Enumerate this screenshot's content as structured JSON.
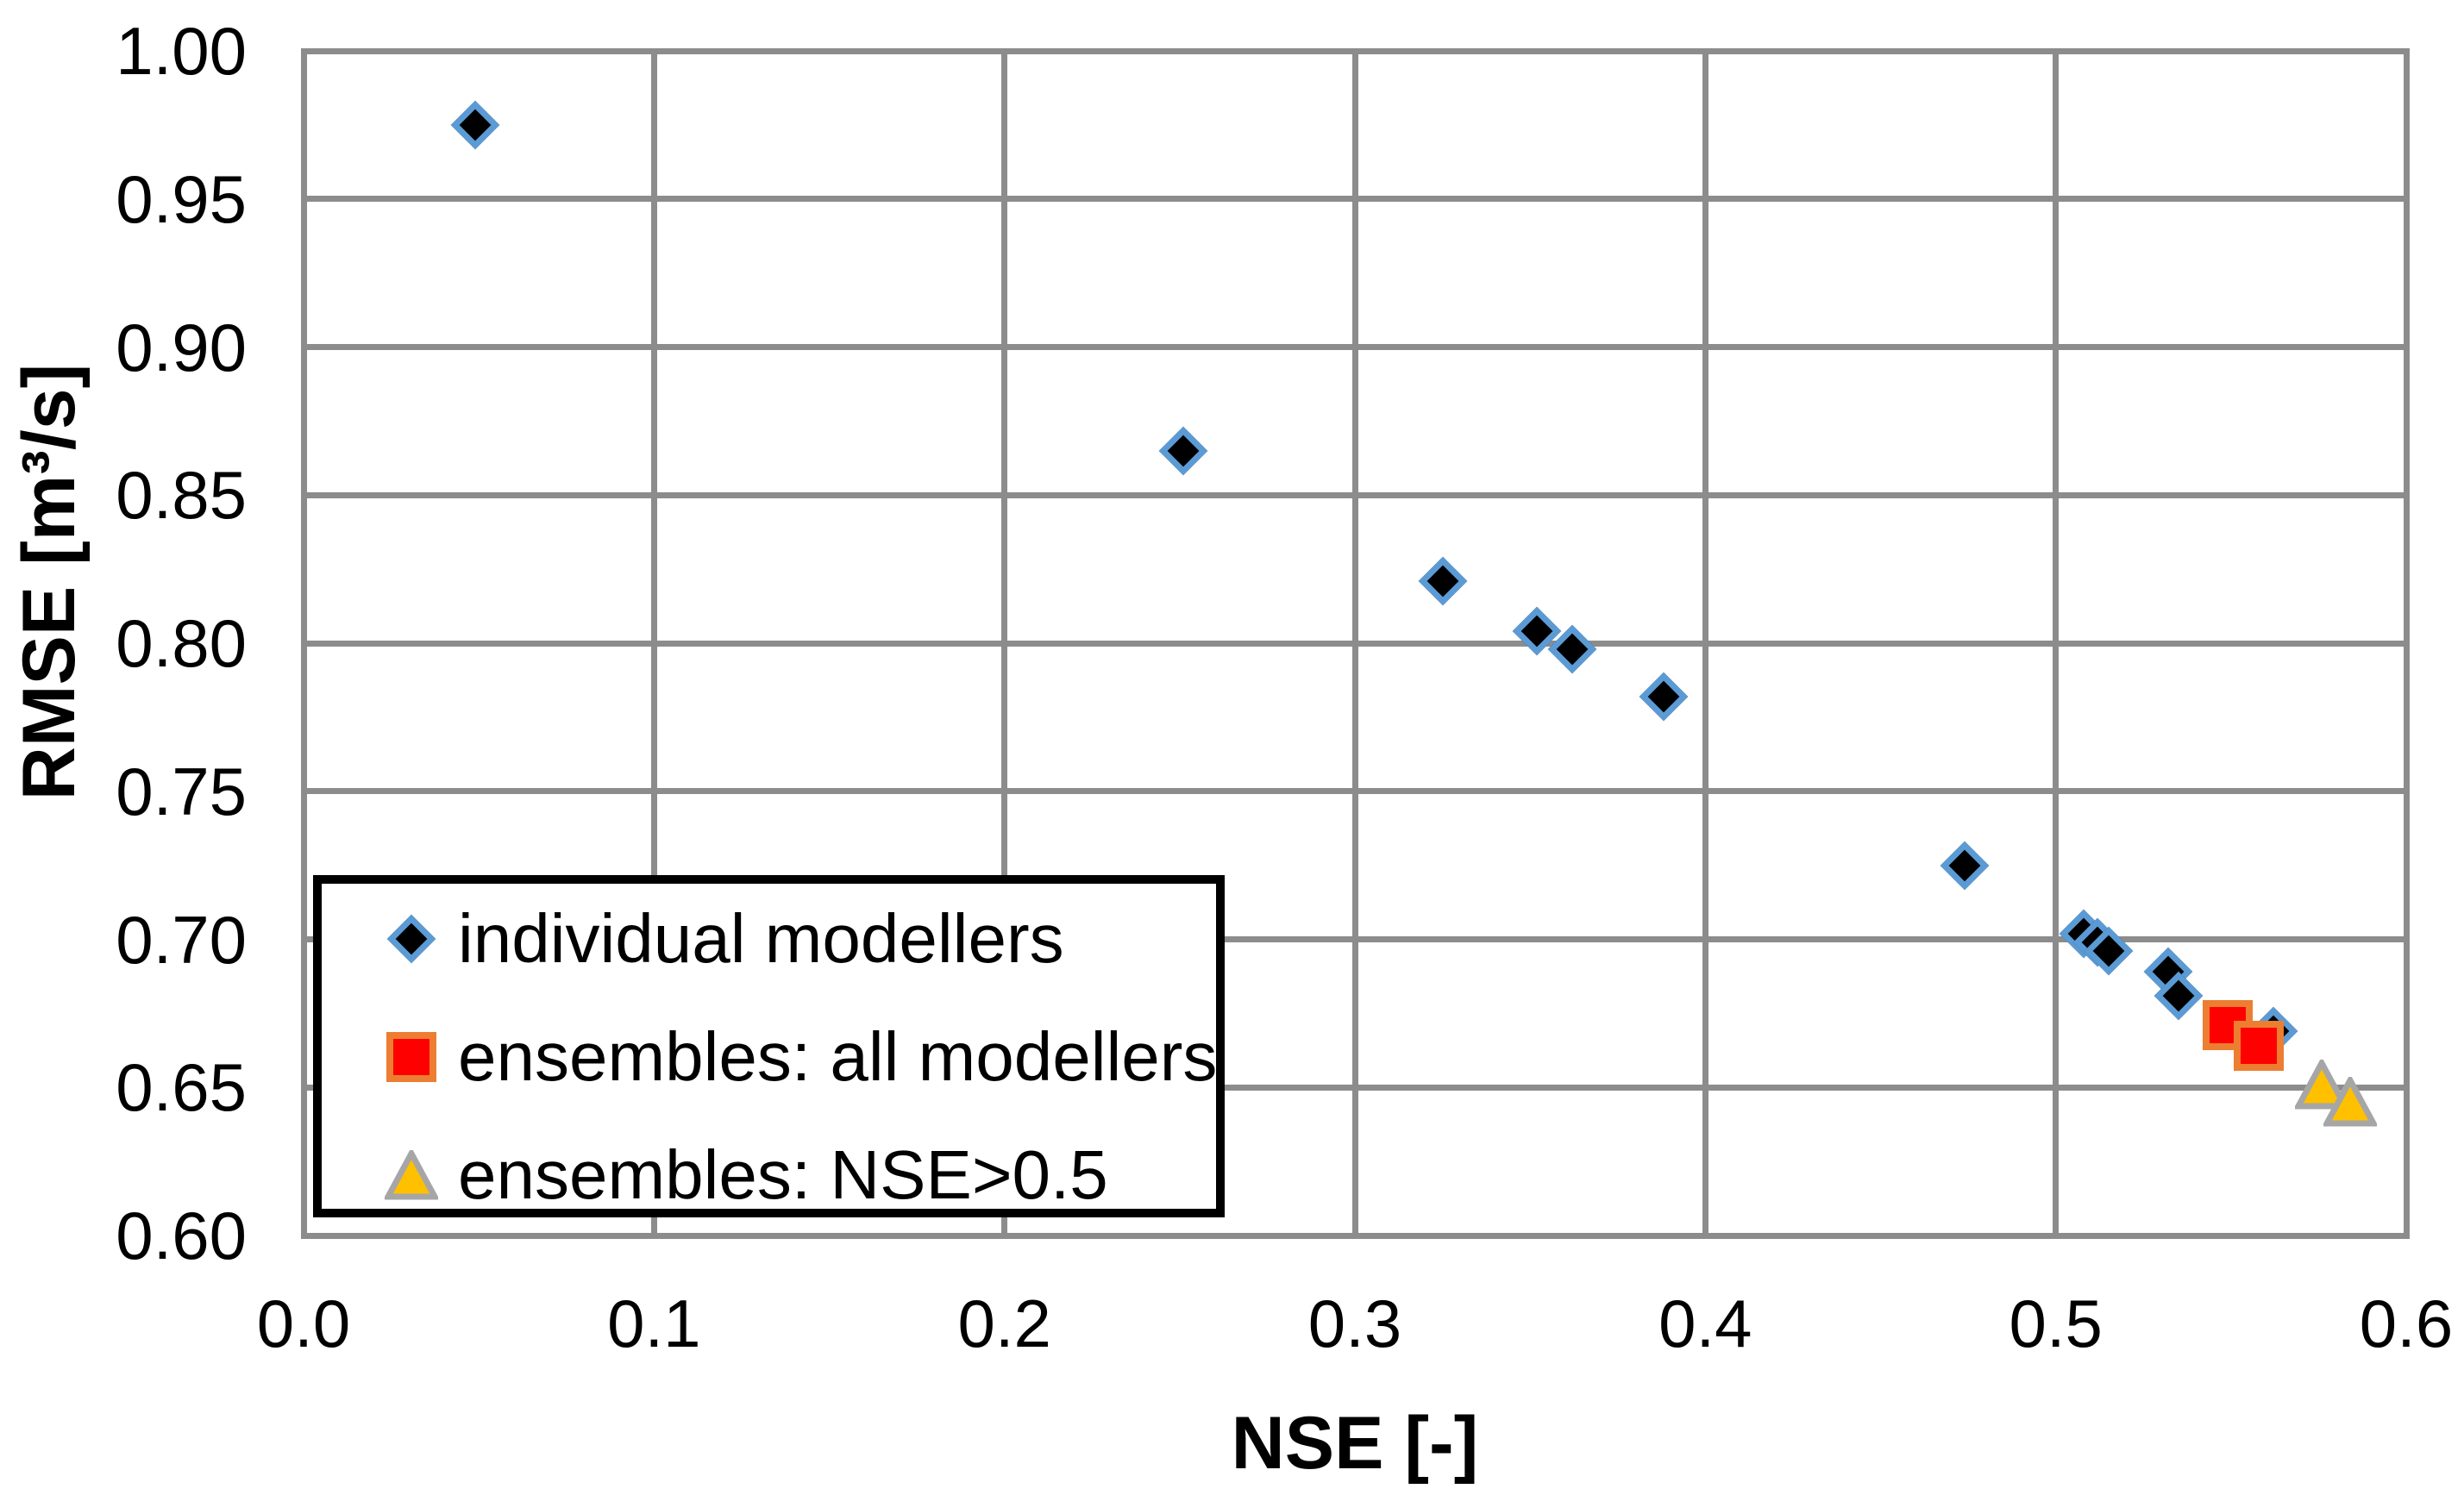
{
  "chart_data": {
    "type": "scatter",
    "title": "",
    "xlabel": "NSE [-]",
    "ylabel": "RMSE [m³/s]",
    "xlim": [
      0.0,
      0.6
    ],
    "ylim": [
      0.6,
      1.0
    ],
    "grid": true,
    "legend_position": "inside-lower-left",
    "x_ticks": [
      "0.0",
      "0.1",
      "0.2",
      "0.3",
      "0.4",
      "0.5",
      "0.6"
    ],
    "y_ticks": [
      "1.00",
      "0.95",
      "0.90",
      "0.85",
      "0.80",
      "0.75",
      "0.70",
      "0.65",
      "0.60"
    ],
    "colors": {
      "gridline": "#8C8C8C",
      "diamond_fill": "#000000",
      "diamond_border": "#5B9BD5",
      "square_fill": "#FF0000",
      "square_border": "#ED7D31",
      "triangle_fill": "#FFC000",
      "triangle_border": "#A6A6A6"
    },
    "series": [
      {
        "name": "individual modellers",
        "marker": "diamond",
        "fill": "#000000",
        "border": "#5B9BD5",
        "points": [
          [
            0.049,
            0.975
          ],
          [
            0.251,
            0.865
          ],
          [
            0.325,
            0.821
          ],
          [
            0.352,
            0.804
          ],
          [
            0.362,
            0.798
          ],
          [
            0.388,
            0.782
          ],
          [
            0.474,
            0.725
          ],
          [
            0.508,
            0.702
          ],
          [
            0.512,
            0.699
          ],
          [
            0.515,
            0.696
          ],
          [
            0.532,
            0.689
          ],
          [
            0.535,
            0.681
          ],
          [
            0.562,
            0.669
          ]
        ]
      },
      {
        "name": "ensembles: all modellers",
        "marker": "square",
        "fill": "#FF0000",
        "border": "#ED7D31",
        "points": [
          [
            0.549,
            0.671
          ],
          [
            0.558,
            0.664
          ]
        ]
      },
      {
        "name": "ensembles: NSE>0.5",
        "marker": "triangle",
        "fill": "#FFC000",
        "border": "#A6A6A6",
        "points": [
          [
            0.576,
            0.651
          ],
          [
            0.584,
            0.645
          ]
        ]
      }
    ]
  }
}
